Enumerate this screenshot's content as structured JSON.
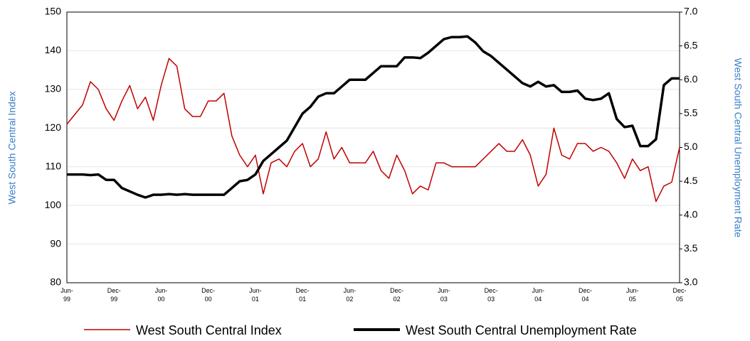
{
  "chart_data": {
    "type": "line",
    "categories": [
      "Jun-99",
      null,
      null,
      null,
      null,
      null,
      "Dec-99",
      null,
      null,
      null,
      null,
      null,
      "Jun-00",
      null,
      null,
      null,
      null,
      null,
      "Dec-00",
      null,
      null,
      null,
      null,
      null,
      "Jun-01",
      null,
      null,
      null,
      null,
      null,
      "Dec-01",
      null,
      null,
      null,
      null,
      null,
      "Jun-02",
      null,
      null,
      null,
      null,
      null,
      "Dec-02",
      null,
      null,
      null,
      null,
      null,
      "Jun-03",
      null,
      null,
      null,
      null,
      null,
      "Dec-03",
      null,
      null,
      null,
      null,
      null,
      "Jun-04",
      null,
      null,
      null,
      null,
      null,
      "Dec-04",
      null,
      null,
      null,
      null,
      null,
      "Jun-05",
      null,
      null,
      null,
      null,
      null,
      "Dec-05"
    ],
    "series": [
      {
        "name": "West South Central Index",
        "color": "#c00000",
        "axis": "y",
        "values": [
          121,
          123.5,
          126,
          132,
          130,
          125,
          122,
          127,
          131,
          125,
          128,
          122,
          131,
          138,
          136,
          125,
          123,
          123,
          127,
          127,
          129,
          118,
          113,
          110,
          113,
          103,
          111,
          112,
          110,
          114,
          116,
          110,
          112,
          119,
          112,
          115,
          111,
          111,
          111,
          114,
          109,
          107,
          113,
          109,
          103,
          105,
          104,
          111,
          111,
          110,
          110,
          110,
          110,
          112,
          114,
          116,
          114,
          114,
          117,
          113,
          105,
          108,
          120,
          113,
          112,
          116,
          116,
          114,
          115,
          114,
          111,
          107,
          112,
          109,
          110,
          101,
          105,
          106,
          115
        ]
      },
      {
        "name": "West South Central Unemployment Rate",
        "color": "#000000",
        "axis": "y2",
        "values": [
          4.6,
          4.6,
          4.6,
          4.59,
          4.6,
          4.52,
          4.52,
          4.4,
          4.35,
          4.3,
          4.26,
          4.3,
          4.3,
          4.31,
          4.3,
          4.31,
          4.3,
          4.3,
          4.3,
          4.3,
          4.3,
          4.4,
          4.5,
          4.52,
          4.6,
          4.8,
          4.9,
          5.0,
          5.1,
          5.3,
          5.5,
          5.6,
          5.75,
          5.8,
          5.8,
          5.9,
          6.0,
          6.0,
          6.0,
          6.1,
          6.2,
          6.2,
          6.2,
          6.33,
          6.33,
          6.32,
          6.4,
          6.5,
          6.6,
          6.63,
          6.63,
          6.64,
          6.55,
          6.42,
          6.35,
          6.25,
          6.15,
          6.05,
          5.95,
          5.9,
          5.97,
          5.9,
          5.92,
          5.82,
          5.82,
          5.84,
          5.72,
          5.7,
          5.72,
          5.8,
          5.42,
          5.3,
          5.32,
          5.02,
          5.02,
          5.12,
          5.92,
          6.02,
          6.02
        ]
      }
    ],
    "ylabel": "West South Central Index",
    "y2label": "West South Central Unemployment Rate",
    "ylim": [
      80,
      150
    ],
    "yticks": [
      80,
      90,
      100,
      110,
      120,
      130,
      140,
      150
    ],
    "y2lim": [
      3.0,
      7.0
    ],
    "y2ticks": [
      {
        "value": 3,
        "label": "3.0"
      },
      {
        "value": 3.5,
        "label": "3.5"
      },
      {
        "value": 4,
        "label": "4.0"
      },
      {
        "value": 4.5,
        "label": "4.5"
      },
      {
        "value": 5,
        "label": "5.0"
      },
      {
        "value": 5.5,
        "label": "5.5"
      },
      {
        "value": 6,
        "label": "6.0"
      },
      {
        "value": 6.5,
        "label": "6.5"
      },
      {
        "value": 7,
        "label": "7.0"
      }
    ],
    "grid": true,
    "legend": "bottom"
  }
}
